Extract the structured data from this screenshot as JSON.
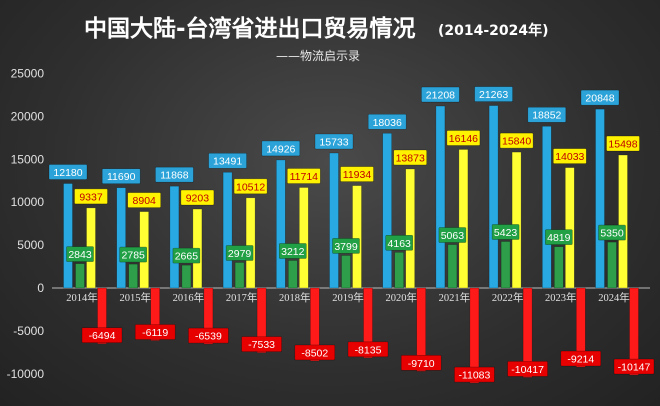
{
  "title": "中国大陆-台湾省进出口贸易情况",
  "title_range": "(2014-2024年)",
  "subtitle": "——物流启示录",
  "colors": {
    "background": "#333333",
    "total_bar": "#29a9e1",
    "total_label_bg": "#2ba3d8",
    "import_bar": "#ffff33",
    "import_label_bg": "#fff200",
    "export_bar": "#2e9e4a",
    "export_label_bg": "#22a045",
    "balance_bar": "#ff1a1a",
    "balance_label_bg": "#e60000",
    "text": "#ffffff"
  },
  "chart_data": {
    "type": "bar",
    "categories": [
      "2014年",
      "2015年",
      "2016年",
      "2017年",
      "2018年",
      "2019年",
      "2020年",
      "2021年",
      "2022年",
      "2023年",
      "2024年"
    ],
    "series": [
      {
        "key": "total",
        "values": [
          12180,
          11690,
          11868,
          13491,
          14926,
          15733,
          18036,
          21208,
          21263,
          18852,
          20848
        ]
      },
      {
        "key": "import",
        "values": [
          9337,
          8904,
          9203,
          10512,
          11714,
          11934,
          13873,
          16146,
          15840,
          14033,
          15498
        ]
      },
      {
        "key": "export",
        "values": [
          2843,
          2785,
          2665,
          2979,
          3212,
          3799,
          4163,
          5063,
          5423,
          4819,
          5350
        ]
      },
      {
        "key": "balance",
        "values": [
          -6494,
          -6119,
          -6539,
          -7533,
          -8502,
          -8135,
          -9710,
          -11083,
          -10417,
          -9214,
          -10147
        ]
      }
    ],
    "yticks": [
      25000,
      20000,
      15000,
      10000,
      5000,
      0,
      -5000,
      -10000
    ],
    "ylim": [
      -13500,
      25500
    ],
    "grid": false,
    "legend": "none"
  }
}
